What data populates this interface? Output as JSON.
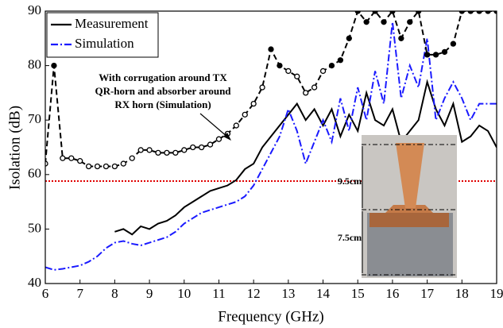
{
  "chart_data": {
    "type": "line",
    "xlabel": "Frequency (GHz)",
    "ylabel": "Isolation (dB)",
    "xlim": [
      6,
      19
    ],
    "ylim": [
      40,
      90
    ],
    "xticks": [
      6,
      7,
      8,
      9,
      10,
      11,
      12,
      13,
      14,
      15,
      16,
      17,
      18,
      19
    ],
    "yticks": [
      40,
      50,
      60,
      70,
      80,
      90
    ],
    "x": [
      6,
      6.25,
      6.5,
      6.75,
      7,
      7.25,
      7.5,
      7.75,
      8,
      8.25,
      8.5,
      8.75,
      9,
      9.25,
      9.5,
      9.75,
      10,
      10.25,
      10.5,
      10.75,
      11,
      11.25,
      11.5,
      11.75,
      12,
      12.25,
      12.5,
      12.75,
      13,
      13.25,
      13.5,
      13.75,
      14,
      14.25,
      14.5,
      14.75,
      15,
      15.25,
      15.5,
      15.75,
      16,
      16.25,
      16.5,
      16.75,
      17,
      17.25,
      17.5,
      17.75,
      18,
      18.25,
      18.5,
      18.75,
      19
    ],
    "series": [
      {
        "name": "Measurement",
        "color": "#000000",
        "dash": "solid",
        "values": [
          null,
          null,
          null,
          null,
          null,
          null,
          null,
          null,
          49.5,
          50,
          49,
          50.5,
          50,
          51,
          51.5,
          52.5,
          54,
          55,
          56,
          57,
          57.5,
          58,
          59,
          61,
          62,
          65,
          67,
          69,
          71,
          73,
          70,
          72,
          69,
          72,
          67,
          71,
          68,
          75,
          70,
          69,
          72,
          66,
          68,
          70,
          77,
          72,
          69,
          73,
          66,
          67,
          69,
          68,
          65
        ]
      },
      {
        "name": "Simulation",
        "color": "#1a1aff",
        "dash": "dashdot",
        "values": [
          43,
          42.5,
          42.7,
          43,
          43.3,
          44,
          45,
          46.5,
          47.5,
          47.8,
          47.3,
          47,
          47.5,
          48,
          48.5,
          49.5,
          51,
          52,
          53,
          53.5,
          54,
          54.5,
          55,
          56,
          58,
          61,
          64,
          67,
          72,
          68,
          62,
          66,
          70,
          66,
          74,
          68,
          76,
          70,
          79,
          73,
          88,
          74,
          80,
          76,
          85,
          70,
          74,
          77,
          74,
          70,
          73,
          73,
          73
        ]
      },
      {
        "color": "#000000",
        "dash": "dashed",
        "marker": "circle",
        "values": [
          62,
          80,
          63,
          63,
          62.5,
          61.5,
          61.5,
          61.5,
          61.5,
          62,
          63,
          64.5,
          64.5,
          64,
          64,
          64,
          64.5,
          65,
          65,
          65.5,
          66.5,
          67.5,
          69,
          71,
          73,
          76,
          83,
          80,
          79,
          78,
          75,
          76,
          79,
          80,
          81,
          85,
          90,
          88,
          90,
          88,
          90,
          85,
          88,
          90,
          82,
          82,
          82.5,
          84,
          90,
          90,
          90,
          90,
          90
        ]
      }
    ],
    "reference_line": {
      "value": 58.8,
      "color": "#e00000"
    },
    "annotation": [
      "With corrugation around TX",
      "QR-horn and absorber around",
      "RX horn (Simulation)"
    ],
    "inset_labels": [
      "9.5cm",
      "7.5cm"
    ],
    "legend": "upper left"
  }
}
